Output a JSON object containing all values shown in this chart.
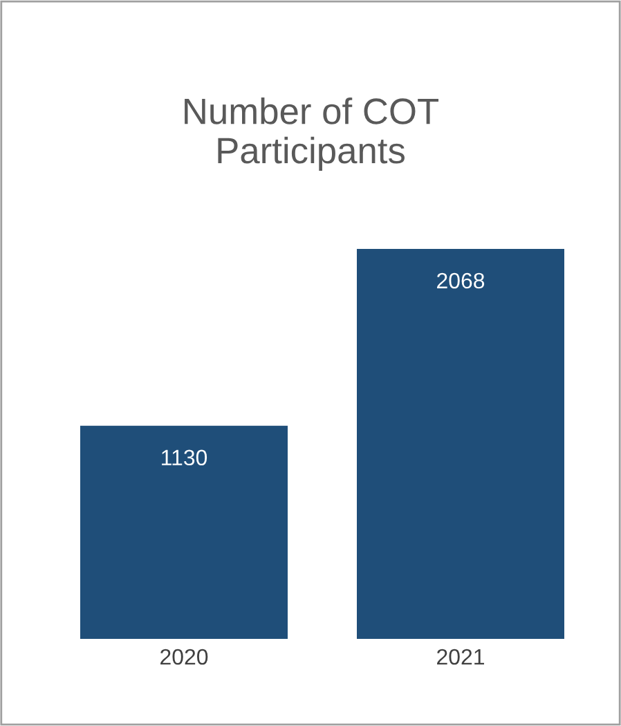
{
  "chart_data": {
    "type": "bar",
    "title": "Number of COT\nParticipants",
    "categories": [
      "2020",
      "2021"
    ],
    "values": [
      1130,
      2068
    ],
    "color": "#1f4e79",
    "data_labels": true,
    "grid": false,
    "legend": false
  }
}
